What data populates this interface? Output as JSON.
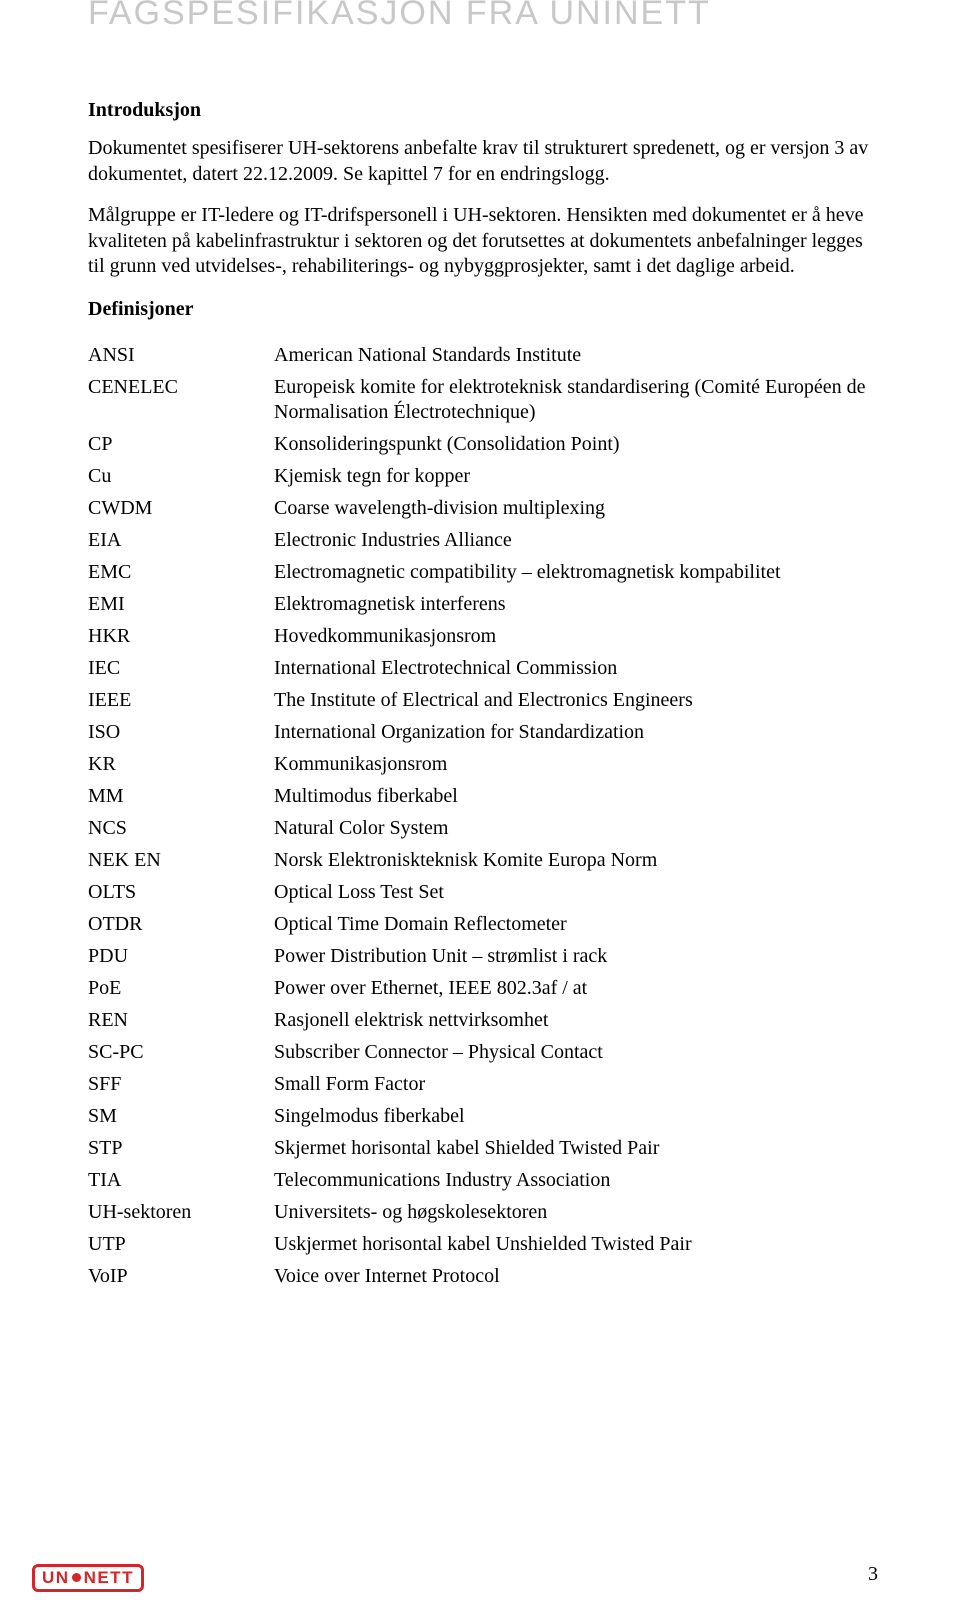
{
  "colors": {
    "background": "#ffffff",
    "header_title": "#c8c8c8",
    "body_text": "#000000",
    "logo_red": "#d4262a"
  },
  "header": {
    "title": "FAGSPESIFIKASJON FRA UNINETT"
  },
  "intro": {
    "heading": "Introduksjon",
    "para1": "Dokumentet spesifiserer UH-sektorens anbefalte krav til strukturert spredenett, og er versjon 3 av dokumentet, datert 22.12.2009. Se kapittel 7 for en endringslogg.",
    "para2": "Målgruppe er IT-ledere og IT-drifspersonell i UH-sektoren. Hensikten med dokumentet er å heve kvaliteten på kabelinfrastruktur i sektoren og det forutsettes at dokumentets anbefalninger legges til grunn ved utvidelses-, rehabiliterings- og nybyggprosjekter, samt i det daglige arbeid."
  },
  "definitions": {
    "heading": "Definisjoner",
    "items": [
      {
        "term": "ANSI",
        "def": "American National Standards Institute"
      },
      {
        "term": "CENELEC",
        "def": "Europeisk komite for elektroteknisk standardisering (Comité Européen de Normalisation Électrotechnique)"
      },
      {
        "term": "CP",
        "def": "Konsolideringspunkt (Consolidation Point)"
      },
      {
        "term": "Cu",
        "def": "Kjemisk tegn for kopper"
      },
      {
        "term": "CWDM",
        "def": "Coarse wavelength-division multiplexing"
      },
      {
        "term": "EIA",
        "def": "Electronic Industries Alliance"
      },
      {
        "term": "EMC",
        "def": "Electromagnetic compatibility – elektromagnetisk kompabilitet"
      },
      {
        "term": "EMI",
        "def": "Elektromagnetisk interferens"
      },
      {
        "term": "HKR",
        "def": "Hovedkommunikasjonsrom"
      },
      {
        "term": "IEC",
        "def": "International Electrotechnical Commission"
      },
      {
        "term": "IEEE",
        "def": "The Institute of Electrical and Electronics Engineers"
      },
      {
        "term": "ISO",
        "def": "International Organization for Standardization"
      },
      {
        "term": "KR",
        "def": "Kommunikasjonsrom"
      },
      {
        "term": "MM",
        "def": "Multimodus fiberkabel"
      },
      {
        "term": "NCS",
        "def": "Natural Color System"
      },
      {
        "term": "NEK EN",
        "def": "Norsk Elektroniskteknisk Komite Europa Norm"
      },
      {
        "term": "OLTS",
        "def": "Optical Loss Test Set"
      },
      {
        "term": "OTDR",
        "def": "Optical Time Domain Reflectometer"
      },
      {
        "term": "PDU",
        "def": "Power Distribution Unit – strømlist i rack"
      },
      {
        "term": "PoE",
        "def": "Power over Ethernet, IEEE 802.3af / at"
      },
      {
        "term": "REN",
        "def": "Rasjonell elektrisk nettvirksomhet"
      },
      {
        "term": "SC-PC",
        "def": "Subscriber Connector – Physical Contact"
      },
      {
        "term": "SFF",
        "def": "Small Form Factor"
      },
      {
        "term": "SM",
        "def": "Singelmodus fiberkabel"
      },
      {
        "term": "STP",
        "def": "Skjermet horisontal kabel Shielded Twisted Pair"
      },
      {
        "term": "TIA",
        "def": "Telecommunications Industry Association"
      },
      {
        "term": "UH-sektoren",
        "def": "Universitets- og høgskolesektoren"
      },
      {
        "term": "UTP",
        "def": "Uskjermet horisontal kabel Unshielded Twisted Pair"
      },
      {
        "term": "VoIP",
        "def": "Voice over Internet Protocol"
      }
    ]
  },
  "footer": {
    "page_number": "3",
    "logo_text_prefix": "UN",
    "logo_text_suffix": "NETT"
  }
}
